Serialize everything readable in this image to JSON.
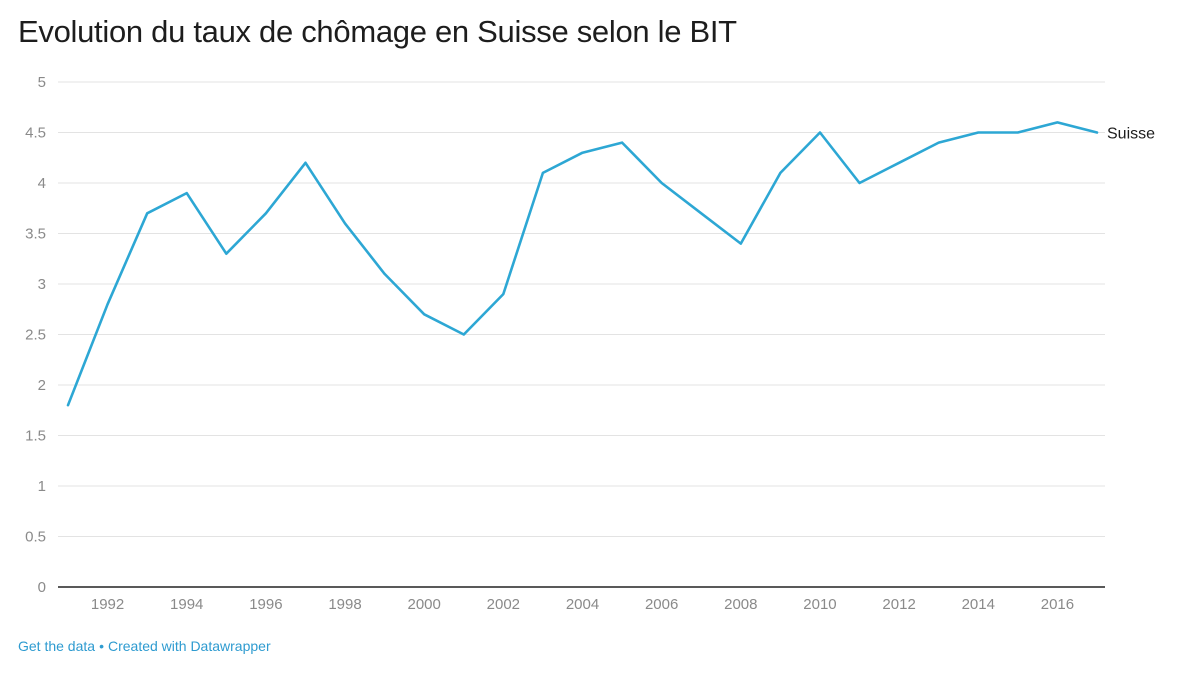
{
  "page": {
    "title": "Evolution du taux de chômage en Suisse selon le BIT",
    "footer": {
      "get_data": "Get the data",
      "separator": "•",
      "created_with": "Created with Datawrapper"
    }
  },
  "chart_data": {
    "type": "line",
    "title": "Evolution du taux de chômage en Suisse selon le BIT",
    "xlabel": "",
    "ylabel": "",
    "xlim": [
      1991,
      2017
    ],
    "ylim": [
      0,
      5
    ],
    "yticks": [
      "0",
      "0.5",
      "1",
      "1.5",
      "2",
      "2.5",
      "3",
      "3.5",
      "4",
      "4.5",
      "5"
    ],
    "xticks": [
      "1992",
      "1994",
      "1996",
      "1998",
      "2000",
      "2002",
      "2004",
      "2006",
      "2008",
      "2010",
      "2012",
      "2014",
      "2016"
    ],
    "grid": true,
    "legend": "direct label at line end",
    "x": [
      1991,
      1992,
      1993,
      1994,
      1995,
      1996,
      1997,
      1998,
      1999,
      2000,
      2001,
      2002,
      2003,
      2004,
      2005,
      2006,
      2007,
      2008,
      2009,
      2010,
      2011,
      2012,
      2013,
      2014,
      2015,
      2016,
      2017
    ],
    "series": [
      {
        "name": "Suisse",
        "color": "#2da7d4",
        "values": [
          1.8,
          2.8,
          3.7,
          3.9,
          3.3,
          3.7,
          4.2,
          3.6,
          3.1,
          2.7,
          2.5,
          2.9,
          4.1,
          4.3,
          4.4,
          4.0,
          3.7,
          3.4,
          4.1,
          4.5,
          4.0,
          4.2,
          4.4,
          4.5,
          4.5,
          4.6,
          4.5
        ]
      }
    ]
  }
}
